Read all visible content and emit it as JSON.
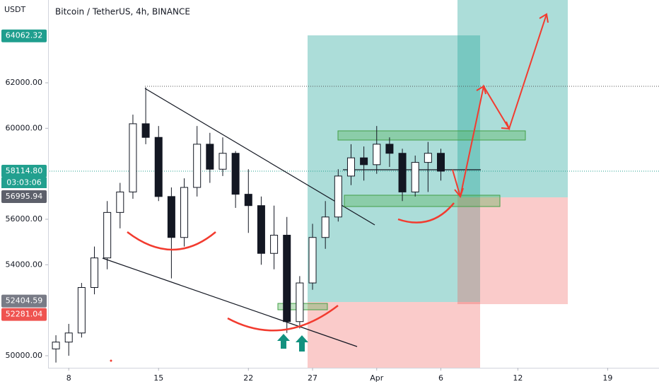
{
  "chart_data": {
    "type": "candlestick",
    "title": "Bitcoin / TetherUS, 4h, BINANCE",
    "y_unit": "USDT",
    "x": [
      7,
      8,
      9,
      10,
      11,
      12,
      13,
      14,
      15,
      16,
      17,
      18,
      19,
      20,
      21,
      22,
      23,
      24,
      25,
      26,
      27,
      28,
      29,
      30,
      31,
      32,
      33,
      34,
      35,
      36,
      37
    ],
    "open": [
      50300,
      50600,
      51000,
      53000,
      54300,
      56300,
      57200,
      60200,
      59600,
      57000,
      55200,
      57400,
      59300,
      58200,
      58900,
      57100,
      56600,
      54500,
      55300,
      51500,
      53200,
      55200,
      56100,
      57900,
      58700,
      58400,
      59300,
      58900,
      57200,
      58500,
      58900
    ],
    "high": [
      50900,
      51400,
      53200,
      54800,
      56800,
      57600,
      60600,
      61800,
      60100,
      57400,
      57800,
      60100,
      59800,
      59600,
      59000,
      58200,
      57000,
      56600,
      56100,
      53500,
      55800,
      56800,
      58200,
      59300,
      59200,
      60100,
      59600,
      59100,
      58800,
      59400,
      59100
    ],
    "low": [
      49700,
      50000,
      50800,
      52700,
      53800,
      55600,
      56900,
      59300,
      56800,
      53400,
      54800,
      57000,
      57600,
      57900,
      56500,
      55400,
      54000,
      53800,
      51000,
      51200,
      52900,
      54700,
      55900,
      57500,
      57700,
      58000,
      58300,
      56800,
      57000,
      57200,
      57700
    ],
    "close": [
      50600,
      51000,
      53000,
      54300,
      56300,
      57200,
      60200,
      59600,
      57000,
      55200,
      57400,
      59300,
      58200,
      58900,
      57100,
      56600,
      54500,
      55300,
      51500,
      53200,
      55200,
      56100,
      57900,
      58700,
      58400,
      59300,
      58900,
      57200,
      58500,
      58900,
      58114.8
    ],
    "up_color": "#ffffff",
    "down_color": "#131722",
    "xlim": [
      6.5,
      54.0
    ],
    "ylim": [
      49470,
      65640
    ],
    "xticks": [
      8,
      15,
      22,
      27,
      {
        "value": 32,
        "label": "Apr"
      },
      {
        "value": 37,
        "label": "6"
      },
      {
        "value": 43,
        "label": "12"
      },
      {
        "value": 50,
        "label": "19"
      }
    ],
    "yticks": [
      {
        "value": 62000,
        "label": "62000.00"
      },
      {
        "value": 60000,
        "label": "60000.00"
      },
      {
        "value": 56000,
        "label": "56000.00"
      },
      {
        "value": 54000,
        "label": "54000.00"
      },
      {
        "value": 50000,
        "label": "50000.00"
      }
    ],
    "price_markers": [
      {
        "value": 64062.32,
        "label": "64062.32",
        "color": "#1f9e8e"
      },
      {
        "value": 58114.8,
        "label": "58114.80",
        "color": "#22a08f"
      },
      {
        "value": 56995.94,
        "label": "56995.94",
        "color": "#5d606b"
      },
      {
        "value": 52404.59,
        "label": "52404.59",
        "color": "#787b86"
      },
      {
        "value": 52281.04,
        "label": "52281.04",
        "color": "#ef5350"
      }
    ],
    "countdown": "03:03:06",
    "grid": false
  }
}
